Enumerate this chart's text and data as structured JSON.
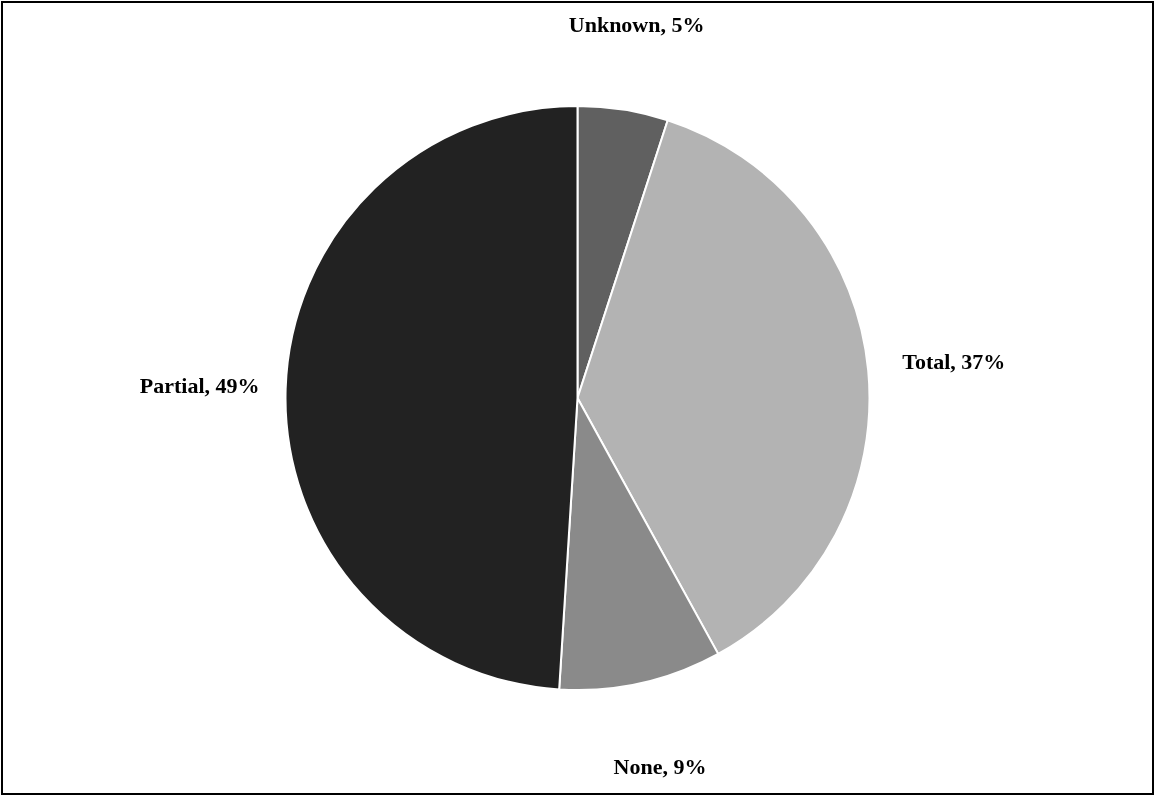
{
  "chart_data": {
    "type": "pie",
    "categories": [
      "Unknown",
      "Total",
      "None",
      "Partial"
    ],
    "values": [
      5,
      37,
      9,
      49
    ],
    "value_labels": [
      "5%",
      "37%",
      "9%",
      "49%"
    ],
    "colors": [
      "#606060",
      "#b3b3b3",
      "#8a8a8a",
      "#222222"
    ],
    "legend": false
  }
}
